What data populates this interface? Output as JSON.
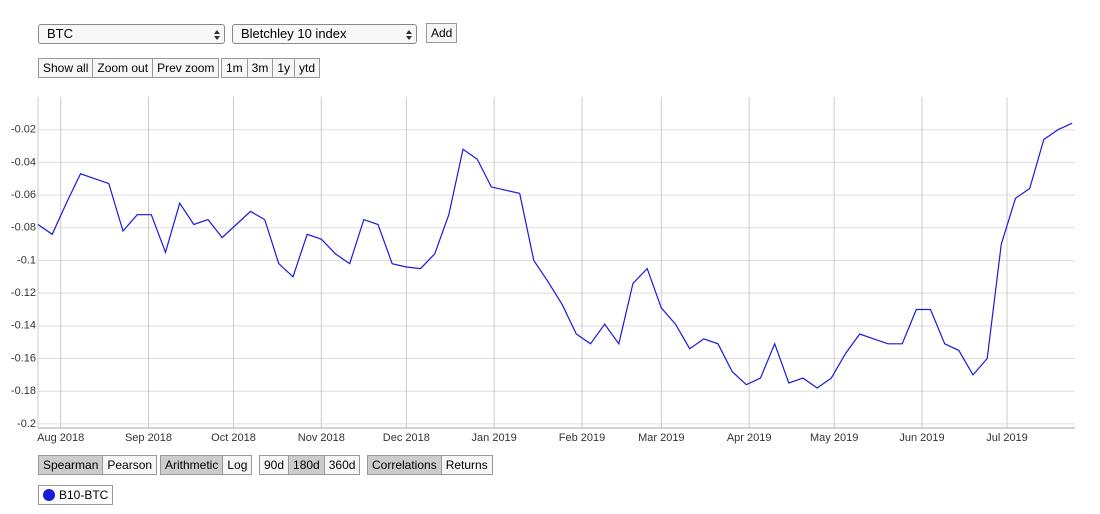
{
  "controls": {
    "asset_select": "BTC",
    "index_select": "Bletchley 10 index",
    "add": "Add",
    "zoom": {
      "buttons": [
        "Show all",
        "Zoom out",
        "Prev zoom"
      ]
    },
    "range": {
      "buttons": [
        "1m",
        "3m",
        "1y",
        "ytd"
      ]
    },
    "method": {
      "buttons": [
        "Spearman",
        "Pearson"
      ],
      "selected": 0
    },
    "scale": {
      "buttons": [
        "Arithmetic",
        "Log"
      ],
      "selected": 0
    },
    "window": {
      "buttons": [
        "90d",
        "180d",
        "360d"
      ],
      "selected": 1
    },
    "view": {
      "buttons": [
        "Correlations",
        "Returns"
      ],
      "selected": 0
    }
  },
  "chart_data": {
    "type": "line",
    "x": [
      "2018-07-24",
      "2018-07-29",
      "2018-08-03",
      "2018-08-08",
      "2018-08-13",
      "2018-08-18",
      "2018-08-23",
      "2018-08-28",
      "2018-09-02",
      "2018-09-07",
      "2018-09-12",
      "2018-09-17",
      "2018-09-22",
      "2018-09-27",
      "2018-10-02",
      "2018-10-07",
      "2018-10-12",
      "2018-10-17",
      "2018-10-22",
      "2018-10-27",
      "2018-11-01",
      "2018-11-06",
      "2018-11-11",
      "2018-11-16",
      "2018-11-21",
      "2018-11-26",
      "2018-12-01",
      "2018-12-06",
      "2018-12-11",
      "2018-12-16",
      "2018-12-21",
      "2018-12-26",
      "2018-12-31",
      "2019-01-05",
      "2019-01-10",
      "2019-01-15",
      "2019-01-20",
      "2019-01-25",
      "2019-01-30",
      "2019-02-04",
      "2019-02-09",
      "2019-02-14",
      "2019-02-19",
      "2019-02-24",
      "2019-03-01",
      "2019-03-06",
      "2019-03-11",
      "2019-03-16",
      "2019-03-21",
      "2019-03-26",
      "2019-03-31",
      "2019-04-05",
      "2019-04-10",
      "2019-04-15",
      "2019-04-20",
      "2019-04-25",
      "2019-04-30",
      "2019-05-05",
      "2019-05-10",
      "2019-05-15",
      "2019-05-20",
      "2019-05-25",
      "2019-05-30",
      "2019-06-04",
      "2019-06-09",
      "2019-06-14",
      "2019-06-19",
      "2019-06-24",
      "2019-06-29",
      "2019-07-04",
      "2019-07-09",
      "2019-07-14",
      "2019-07-19",
      "2019-07-24"
    ],
    "series": [
      {
        "name": "B10-BTC",
        "color": "#1a1adb",
        "values": [
          -0.078,
          -0.084,
          -0.065,
          -0.047,
          -0.05,
          -0.053,
          -0.082,
          -0.072,
          -0.072,
          -0.095,
          -0.065,
          -0.078,
          -0.075,
          -0.086,
          -0.078,
          -0.07,
          -0.075,
          -0.102,
          -0.11,
          -0.084,
          -0.087,
          -0.096,
          -0.102,
          -0.075,
          -0.078,
          -0.102,
          -0.104,
          -0.105,
          -0.096,
          -0.072,
          -0.032,
          -0.038,
          -0.055,
          -0.057,
          -0.059,
          -0.1,
          -0.113,
          -0.127,
          -0.145,
          -0.151,
          -0.139,
          -0.151,
          -0.114,
          -0.105,
          -0.129,
          -0.139,
          -0.154,
          -0.148,
          -0.151,
          -0.168,
          -0.176,
          -0.172,
          -0.151,
          -0.175,
          -0.172,
          -0.178,
          -0.172,
          -0.157,
          -0.145,
          -0.148,
          -0.151,
          -0.151,
          -0.13,
          -0.13,
          -0.151,
          -0.155,
          -0.17,
          -0.16,
          -0.09,
          -0.062,
          -0.056,
          -0.026,
          -0.02,
          -0.016
        ]
      }
    ],
    "xlim": [
      "2018-07-24",
      "2019-07-25"
    ],
    "xticks": [
      {
        "value": "2018-08-01",
        "label": "Aug 2018"
      },
      {
        "value": "2018-09-01",
        "label": "Sep 2018"
      },
      {
        "value": "2018-10-01",
        "label": "Oct 2018"
      },
      {
        "value": "2018-11-01",
        "label": "Nov 2018"
      },
      {
        "value": "2018-12-01",
        "label": "Dec 2018"
      },
      {
        "value": "2019-01-01",
        "label": "Jan 2019"
      },
      {
        "value": "2019-02-01",
        "label": "Feb 2019"
      },
      {
        "value": "2019-03-01",
        "label": "Mar 2019"
      },
      {
        "value": "2019-04-01",
        "label": "Apr 2019"
      },
      {
        "value": "2019-05-01",
        "label": "May 2019"
      },
      {
        "value": "2019-06-01",
        "label": "Jun 2019"
      },
      {
        "value": "2019-07-01",
        "label": "Jul 2019"
      }
    ],
    "ylim": [
      -0.2025,
      0
    ],
    "yticks": [
      -0.02,
      -0.04,
      -0.06,
      -0.08,
      -0.1,
      -0.12,
      -0.14,
      -0.16,
      -0.18,
      -0.2
    ],
    "grid": true
  }
}
